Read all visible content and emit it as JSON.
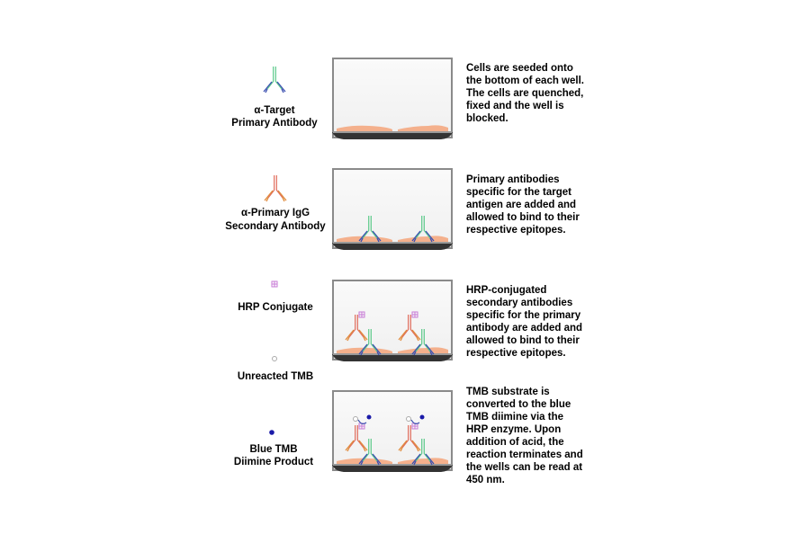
{
  "legend": [
    {
      "icon": "primary-antibody-icon",
      "lines": [
        "α-Target",
        "Primary Antibody"
      ]
    },
    {
      "icon": "secondary-antibody-icon",
      "lines": [
        "α-Primary IgG",
        "Secondary Antibody"
      ]
    },
    {
      "icon": "hrp-conjugate-icon",
      "lines": [
        "HRP Conjugate"
      ]
    },
    {
      "icon": "unreacted-tmb-icon",
      "lines": [
        "Unreacted TMB"
      ]
    },
    {
      "icon": "blue-tmb-icon",
      "lines": [
        "Blue TMB",
        "Diimine Product"
      ]
    }
  ],
  "steps": [
    {
      "lines": [
        "Cells are seeded onto",
        "the bottom of each well.",
        "The cells are quenched,",
        "fixed and the well is",
        "blocked."
      ]
    },
    {
      "lines": [
        "Primary antibodies",
        "specific for the target",
        "antigen are added and",
        "allowed to bind to their",
        "respective epitopes."
      ]
    },
    {
      "lines": [
        "HRP-conjugated",
        "secondary antibodies",
        "specific for the primary",
        "antibody are added and",
        "allowed to bind to their",
        "respective epitopes."
      ]
    },
    {
      "lines": [
        "TMB substrate is",
        "converted to the blue",
        "TMB diimine via the",
        "HRP enzyme. Upon",
        "addition of acid, the",
        "reaction terminates and",
        "the wells can be read at",
        "450 nm."
      ]
    }
  ],
  "colors": {
    "primary_stem": "#5cc98a",
    "primary_arms": "#3a4fb0",
    "secondary_stem": "#e06b5a",
    "secondary_arms": "#e08a3a",
    "hrp": "#c77ad6",
    "tmb_blue": "#1a1aa8",
    "cells": "#f4b08c",
    "well_base": "#333333"
  }
}
